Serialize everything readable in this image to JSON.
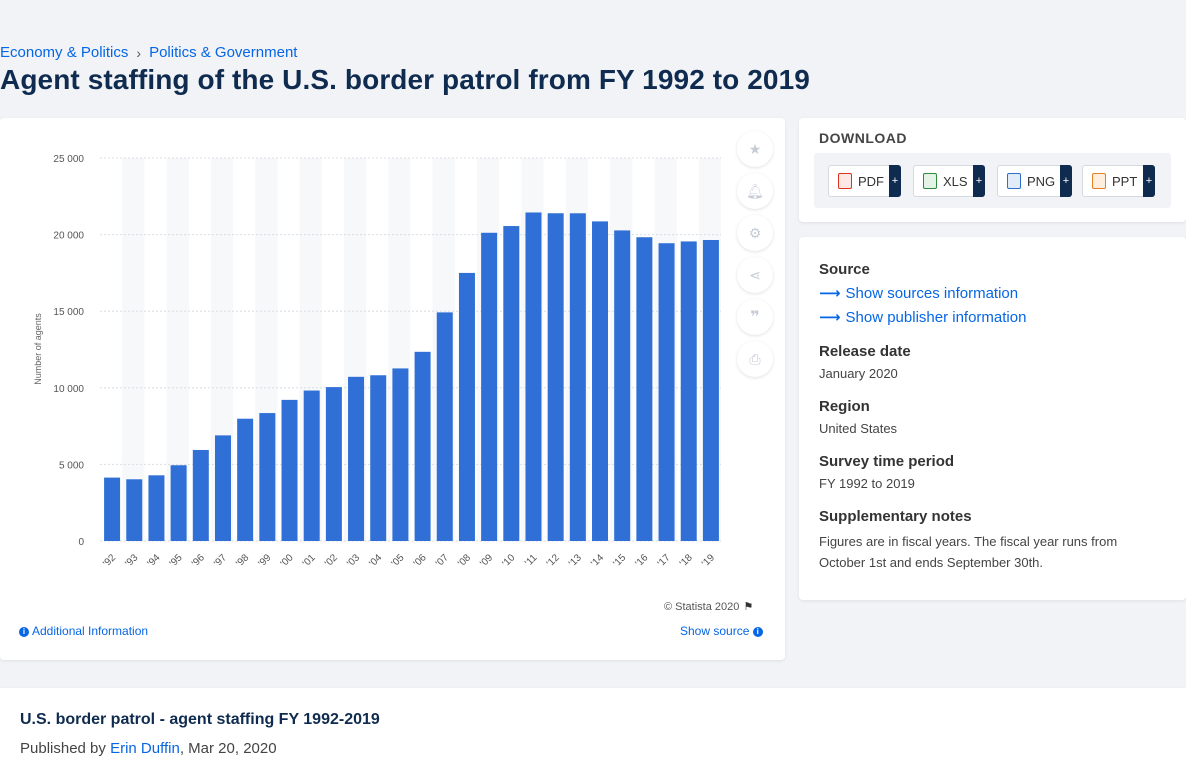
{
  "breadcrumb": {
    "item1": "Economy & Politics",
    "separator": "›",
    "item2": "Politics & Government"
  },
  "page_title": "Agent staffing of the U.S. border patrol from FY 1992 to 2019",
  "chart_meta": {
    "copyright": "© Statista 2020",
    "additional_info": "Additional Information",
    "show_source": "Show source"
  },
  "tools": [
    "star-icon",
    "bell-icon",
    "gear-icon",
    "share-icon",
    "quote-icon",
    "print-icon"
  ],
  "download": {
    "title": "DOWNLOAD",
    "buttons": [
      {
        "label": "PDF",
        "color": "#e0301e"
      },
      {
        "label": "XLS",
        "color": "#2e8b3d"
      },
      {
        "label": "PNG",
        "color": "#2a6fc9"
      },
      {
        "label": "PPT",
        "color": "#e67e22"
      }
    ],
    "plus": "+"
  },
  "source_panel": {
    "source_heading": "Source",
    "show_sources": "Show sources information",
    "show_publisher": "Show publisher information",
    "release_heading": "Release date",
    "release_value": "January 2020",
    "region_heading": "Region",
    "region_value": "United States",
    "survey_heading": "Survey time period",
    "survey_value": "FY 1992 to 2019",
    "notes_heading": "Supplementary notes",
    "notes_value": "Figures are in fiscal years. The fiscal year runs from October 1st and ends September 30th."
  },
  "bottom": {
    "title": "U.S. border patrol - agent staffing FY 1992-2019",
    "published_prefix": "Published by",
    "author": "Erin Duffin",
    "date": ", Mar 20, 2020"
  },
  "colors": {
    "bar": "#2f6fd6",
    "stripe": "#f7f8fa",
    "accent": "#0666e5",
    "title": "#0f2b4f"
  },
  "chart_data": {
    "type": "bar",
    "ylabel": "Number of agents",
    "xlabel": "",
    "ylim": [
      0,
      25000
    ],
    "yticks": [
      0,
      5000,
      10000,
      15000,
      20000,
      25000
    ],
    "ytick_labels": [
      "0",
      "5 000",
      "10 000",
      "15 000",
      "20 000",
      "25 000"
    ],
    "grid": true,
    "categories": [
      "'92",
      "'93",
      "'94",
      "'95",
      "'96",
      "'97",
      "'98",
      "'99",
      "'00",
      "'01",
      "'02",
      "'03",
      "'04",
      "'05",
      "'06",
      "'07",
      "'08",
      "'09",
      "'10",
      "'11",
      "'12",
      "'13",
      "'14",
      "'15",
      "'16",
      "'17",
      "'18",
      "'19"
    ],
    "values": [
      4139,
      4028,
      4287,
      4945,
      5942,
      6895,
      7982,
      8351,
      9212,
      9821,
      10045,
      10717,
      10819,
      11265,
      12349,
      14923,
      17499,
      20119,
      20558,
      21444,
      21394,
      21391,
      20863,
      20273,
      19828,
      19437,
      19555,
      19648
    ]
  }
}
